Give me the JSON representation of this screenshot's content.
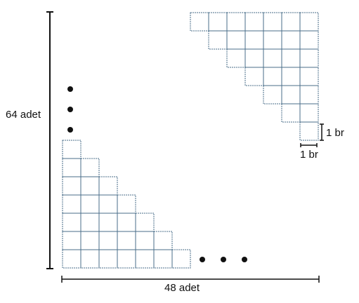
{
  "diagram": {
    "left_dimension_label": "64 adet",
    "bottom_dimension_label": "48 adet",
    "unit_height_label": "1 br",
    "unit_width_label": "1 br",
    "bottom_left_staircase_columns": [
      7,
      6,
      5,
      4,
      3,
      2,
      1
    ],
    "top_right_staircase_columns": [
      1,
      2,
      3,
      4,
      5,
      6,
      7
    ],
    "ellipsis_vertical_dots": 3,
    "ellipsis_horizontal_dots": 3,
    "colors": {
      "grid_line": "#4a6e8a",
      "ink": "#111111"
    }
  }
}
